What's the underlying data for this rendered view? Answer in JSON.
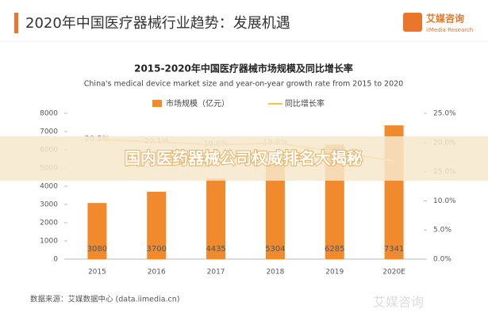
{
  "header": {
    "title": "2020年中国医疗器械行业趋势：发展机遇",
    "logo": "艾媒咨询",
    "logo_sub": "iiMedia Research"
  },
  "banner": "国内医药器械公司权威排名大揭秘",
  "source": "数据来源：艾媒数据中心 (data.iimedia.cn)",
  "watermark": "艾媒咨询",
  "chart_data": {
    "type": "bar",
    "title": "2015-2020年中国医疗器械市场规模及同比增长率",
    "subtitle": "China's medical device market size and year-on-year growth rate from 2015 to 2020",
    "categories": [
      "2015",
      "2016",
      "2017",
      "2018",
      "2019",
      "2020E"
    ],
    "series": [
      {
        "name": "市场规模（亿元）",
        "color": "#f08a2c",
        "values": [
          3080,
          3700,
          4435,
          5304,
          6285,
          7341
        ]
      },
      {
        "name": "同比增长率",
        "color": "#f3c54a",
        "axis": "y2",
        "type": "line",
        "values": [
          20.5,
          20.1,
          19.6,
          19.9,
          18.5,
          16.8
        ],
        "value_labels": [
          "20.5%",
          "20.1%",
          "19.6%",
          "19.9%",
          "18.5%",
          null
        ]
      }
    ],
    "ylim": [
      0,
      8000
    ],
    "yticks": [
      0,
      1000,
      2000,
      3000,
      4000,
      5000,
      6000,
      7000,
      8000
    ],
    "y2lim": [
      0,
      25
    ],
    "y2ticks": [
      {
        "value": 0,
        "label": "0.0%"
      },
      {
        "value": 5,
        "label": "5.0%"
      },
      {
        "value": 10,
        "label": "10.0%"
      },
      {
        "value": 15,
        "label": "15.0%"
      },
      {
        "value": 20,
        "label": "20.0%"
      },
      {
        "value": 25,
        "label": "25.0%"
      }
    ],
    "legend": "top"
  }
}
